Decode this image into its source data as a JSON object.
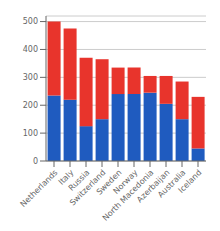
{
  "chart_data": {
    "type": "bar",
    "stacked": true,
    "grid": true,
    "categories": [
      "Netherlands",
      "Italy",
      "Russia",
      "Switzerland",
      "Sweden",
      "Norway",
      "North Macedonia",
      "Azerbaijan",
      "Australia",
      "Iceland"
    ],
    "series": [
      {
        "color": "#1f5bbf",
        "values": [
          235,
          220,
          125,
          150,
          240,
          240,
          245,
          205,
          150,
          45
        ]
      },
      {
        "color": "#e8342c",
        "values": [
          265,
          255,
          245,
          215,
          95,
          95,
          60,
          100,
          135,
          185
        ]
      }
    ],
    "ylim": [
      0,
      520
    ],
    "yticks": [
      0,
      100,
      200,
      300,
      400,
      500
    ]
  }
}
